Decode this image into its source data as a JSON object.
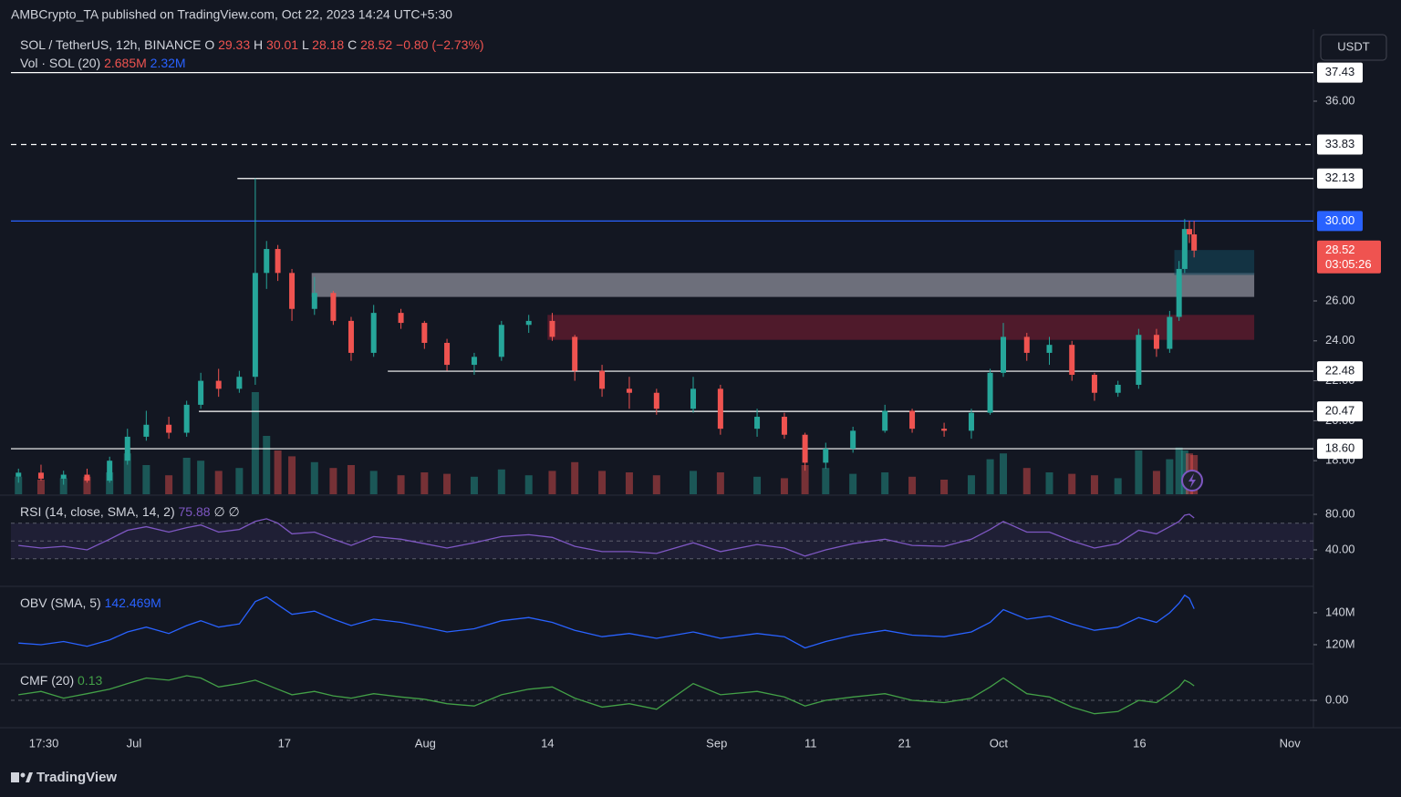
{
  "publisher_line": "AMBCrypto_TA published on TradingView.com, Oct 22, 2023 14:24 UTC+5:30",
  "currency_button": "USDT",
  "footer_logo": "TradingView",
  "chart_data": [
    {
      "type": "candlestick",
      "title": "SOL / TetherUS, 12h, BINANCE",
      "ohlc_labels": [
        "O",
        "H",
        "L",
        "C"
      ],
      "change": "−0.80 (−2.73%)",
      "volume_title": "Vol · SOL (20)",
      "volume_last": "2.685M",
      "volume_ma": "2.32M",
      "countdown": "03:05:26",
      "up_color": "#26a69a",
      "down_color": "#ef5350",
      "x": [
        -12.3,
        -9.9,
        -7.5,
        -5,
        -2.6,
        -0.7,
        1.3,
        3.7,
        5.6,
        7.1,
        9,
        11.2,
        12.9,
        14.1,
        15.3,
        16.8,
        19.2,
        21.2,
        23.1,
        25.5,
        28.4,
        30.9,
        33.3,
        36.2,
        39.1,
        42,
        44.5,
        46.9,
        49.8,
        52.7,
        55.6,
        59.5,
        62.4,
        66.3,
        69.2,
        71.4,
        73.6,
        76.5,
        79.9,
        82.8,
        86.2,
        89.1,
        91.1,
        92.5,
        95,
        97.4,
        99.8,
        102.2,
        104.7,
        106.9,
        108.8,
        110.2,
        111.2,
        111.8,
        112.3,
        112.8
      ],
      "open": [
        17.2,
        17.4,
        17.1,
        17.3,
        17.0,
        18.0,
        19.2,
        19.8,
        19.4,
        20.8,
        22.0,
        21.6,
        22.2,
        27.4,
        28.6,
        27.4,
        25.6,
        26.4,
        25.0,
        23.4,
        25.4,
        24.9,
        23.9,
        22.8,
        23.2,
        24.8,
        25.0,
        24.2,
        22.5,
        21.6,
        21.4,
        20.6,
        21.6,
        19.6,
        20.2,
        19.3,
        17.9,
        18.6,
        19.5,
        20.5,
        19.6,
        19.5,
        20.4,
        22.4,
        24.2,
        23.4,
        23.8,
        22.3,
        21.4,
        21.8,
        24.3,
        23.6,
        25.2,
        27.6,
        29.6,
        29.33
      ],
      "high": [
        17.6,
        17.8,
        17.5,
        17.6,
        18.2,
        19.6,
        20.5,
        20.2,
        21.0,
        22.4,
        22.6,
        22.5,
        32.13,
        29.0,
        28.8,
        27.6,
        27.2,
        26.5,
        25.2,
        25.8,
        25.6,
        25.0,
        24.1,
        23.4,
        25.0,
        25.3,
        25.4,
        24.3,
        22.8,
        22.2,
        21.6,
        22.2,
        21.8,
        20.6,
        20.4,
        19.4,
        18.9,
        19.7,
        20.8,
        20.6,
        19.9,
        20.6,
        22.6,
        24.9,
        24.4,
        24.2,
        24.0,
        22.4,
        22.0,
        24.6,
        24.6,
        25.5,
        28.0,
        30.1,
        30.01,
        30.01
      ],
      "low": [
        16.9,
        17.0,
        16.8,
        16.9,
        16.9,
        17.8,
        19.0,
        19.1,
        19.2,
        20.6,
        21.2,
        21.4,
        21.8,
        26.6,
        27.0,
        25.0,
        25.3,
        24.8,
        23.0,
        23.2,
        24.6,
        23.6,
        22.5,
        22.3,
        23.0,
        24.4,
        24.0,
        22.0,
        21.2,
        20.6,
        20.3,
        20.4,
        19.3,
        19.2,
        19.1,
        17.5,
        17.6,
        18.4,
        19.4,
        19.4,
        19.2,
        19.1,
        20.3,
        22.2,
        23.0,
        22.8,
        22.0,
        21.0,
        21.2,
        21.6,
        23.2,
        23.4,
        25.0,
        27.4,
        28.9,
        28.18
      ],
      "close": [
        17.4,
        17.1,
        17.3,
        17.0,
        18.0,
        19.2,
        19.8,
        19.4,
        20.8,
        22.0,
        21.6,
        22.2,
        27.4,
        28.6,
        27.4,
        25.6,
        26.4,
        25.0,
        23.4,
        25.4,
        24.9,
        23.9,
        22.8,
        23.2,
        24.8,
        25.0,
        24.2,
        22.5,
        21.6,
        21.4,
        20.6,
        21.6,
        19.6,
        20.2,
        19.3,
        17.9,
        18.6,
        19.5,
        20.5,
        19.6,
        19.5,
        20.4,
        22.4,
        24.2,
        23.4,
        23.8,
        22.3,
        21.4,
        21.8,
        24.3,
        23.6,
        25.2,
        27.6,
        29.6,
        29.33,
        28.52
      ],
      "volume": [
        1.2,
        1.0,
        1.1,
        1.2,
        1.5,
        2.8,
        2.0,
        1.3,
        2.5,
        2.3,
        1.6,
        1.8,
        7.0,
        4.0,
        3.0,
        2.6,
        2.2,
        1.8,
        2.0,
        1.6,
        1.3,
        1.5,
        1.4,
        1.2,
        1.7,
        1.3,
        1.6,
        2.2,
        1.6,
        1.5,
        1.3,
        1.6,
        1.5,
        1.2,
        1.1,
        2.0,
        1.8,
        1.4,
        1.5,
        1.2,
        1.0,
        1.3,
        2.4,
        2.8,
        1.8,
        1.5,
        1.4,
        1.3,
        1.1,
        3.0,
        1.6,
        2.4,
        3.2,
        3.0,
        2.8,
        2.685
      ],
      "xlim": [
        -13.1,
        125.5
      ],
      "ylim": [
        16.32,
        39.24
      ],
      "xticks": [
        {
          "value": -9.6,
          "label": "17:30"
        },
        {
          "value": 0,
          "label": "Jul"
        },
        {
          "value": 16,
          "label": "17"
        },
        {
          "value": 31,
          "label": "Aug"
        },
        {
          "value": 44,
          "label": "14"
        },
        {
          "value": 62,
          "label": "Sep"
        },
        {
          "value": 72,
          "label": "11"
        },
        {
          "value": 82,
          "label": "21"
        },
        {
          "value": 92,
          "label": "Oct"
        },
        {
          "value": 107,
          "label": "16"
        },
        {
          "value": 123,
          "label": "Nov"
        }
      ],
      "yticks": [
        {
          "value": 36,
          "label": "36.00"
        },
        {
          "value": 26,
          "label": "26.00"
        },
        {
          "value": 24,
          "label": "24.00"
        },
        {
          "value": 22,
          "label": "22.00"
        },
        {
          "value": 20,
          "label": "20.00"
        },
        {
          "value": 18,
          "label": "18.00"
        }
      ],
      "levels": [
        {
          "value": 37.43,
          "style": "solid",
          "color": "#ffffff"
        },
        {
          "value": 33.83,
          "style": "dashed",
          "color": "#ffffff"
        },
        {
          "value": 32.13,
          "style": "solid",
          "color": "#ffffff",
          "start": 11
        },
        {
          "value": 30,
          "label": "30.00",
          "style": "solid",
          "color": "#2962ff"
        },
        {
          "value": 22.48,
          "style": "solid",
          "color": "#ffffff",
          "start": 27
        },
        {
          "value": 20.47,
          "style": "solid",
          "color": "#ffffff",
          "start": 6.9
        },
        {
          "value": 18.6,
          "label": "18.60",
          "style": "solid",
          "color": "#ffffff"
        }
      ],
      "zones": [
        {
          "low": 26.2,
          "high": 27.4,
          "start": 18.9,
          "end": 119.2,
          "color": "rgba(200,200,212,0.5)"
        },
        {
          "low": 24.05,
          "high": 25.3,
          "start": 44,
          "end": 119.2,
          "color": "rgba(120,28,50,0.6)"
        },
        {
          "low": 27.3,
          "high": 28.55,
          "start": 110.7,
          "end": 119.2,
          "color": "rgba(20,70,90,0.6)"
        }
      ]
    },
    {
      "type": "line",
      "title": "RSI (14, close, SMA, 14, 2)",
      "extra": "∅ ∅",
      "color": "#7e57c2",
      "levels": [
        70,
        50,
        30
      ],
      "values": [
        45,
        42,
        44,
        40,
        52,
        62,
        66,
        60,
        65,
        68,
        60,
        63,
        72,
        75,
        70,
        58,
        60,
        52,
        45,
        55,
        52,
        47,
        42,
        48,
        55,
        57,
        54,
        44,
        38,
        38,
        36,
        48,
        38,
        46,
        42,
        33,
        40,
        47,
        52,
        45,
        44,
        52,
        63,
        72,
        60,
        60,
        50,
        42,
        47,
        62,
        58,
        66,
        72,
        79,
        80,
        75.88
      ],
      "ylim": [
        2,
        99.5
      ],
      "yticks": [
        {
          "value": 80,
          "label": "80.00"
        },
        {
          "value": 40,
          "label": "40.00"
        }
      ]
    },
    {
      "type": "line",
      "title": "OBV (SMA, 5)",
      "last_label": "142.469M",
      "color": "#2962ff",
      "values": [
        121,
        120,
        122,
        119,
        123,
        128,
        131,
        127,
        132,
        135,
        131,
        133,
        147,
        150,
        145,
        139,
        141,
        136,
        132,
        136,
        134,
        131,
        128,
        130,
        135,
        137,
        134,
        129,
        125,
        127,
        124,
        128,
        124,
        127,
        125,
        118,
        122,
        126,
        129,
        126,
        125,
        128,
        134,
        142,
        136,
        138,
        133,
        129,
        131,
        137,
        134,
        140,
        146,
        151,
        149,
        142.469
      ],
      "ylim": [
        109.7,
        155.4
      ],
      "yticks": [
        {
          "value": 140,
          "label": "140M"
        },
        {
          "value": 120,
          "label": "120M"
        }
      ]
    },
    {
      "type": "line",
      "title": "CMF (20)",
      "color": "#43a047",
      "levels": [
        0
      ],
      "values": [
        0.05,
        0.08,
        0.02,
        0.06,
        0.1,
        0.15,
        0.2,
        0.18,
        0.22,
        0.2,
        0.12,
        0.15,
        0.18,
        0.14,
        0.1,
        0.05,
        0.08,
        0.04,
        0.02,
        0.06,
        0.03,
        0.01,
        -0.03,
        -0.05,
        0.05,
        0.1,
        0.12,
        0.02,
        -0.06,
        -0.03,
        -0.08,
        0.15,
        0.05,
        0.08,
        0.03,
        -0.05,
        0.0,
        0.03,
        0.06,
        0.0,
        -0.02,
        0.02,
        0.12,
        0.2,
        0.06,
        0.03,
        -0.06,
        -0.12,
        -0.1,
        0.0,
        -0.02,
        0.06,
        0.12,
        0.18,
        0.16,
        0.13
      ],
      "ylim": [
        -0.22,
        0.31
      ],
      "yticks": [
        {
          "value": 0,
          "label": "0.00"
        }
      ]
    }
  ]
}
